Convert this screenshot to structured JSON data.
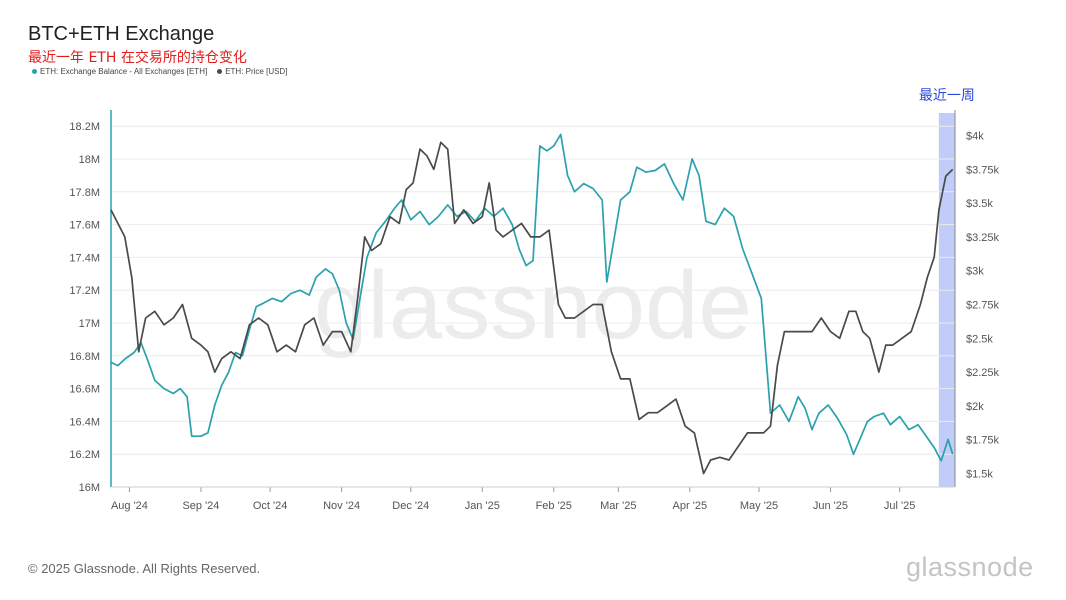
{
  "header": {
    "title": "BTC+ETH Exchange",
    "subtitle": "最近一年 ETH 在交易所的持仓变化"
  },
  "footer": {
    "copyright": "© 2025 Glassnode. All Rights Reserved.",
    "brand": "glassnode"
  },
  "colors": {
    "balance": "#2aa1ad",
    "price": "#4a4a4a",
    "highlight": "#8ea2f2",
    "annotation": "#2b49d8"
  },
  "chart_data": {
    "type": "line",
    "title": "BTC+ETH Exchange",
    "subtitle": "最近一年 ETH 在交易所的持仓变化",
    "watermark": "glassnode",
    "annotation": {
      "text": "最近一周",
      "highlight_start": "2025-07-18",
      "highlight_end": "2025-07-25"
    },
    "x_ticks": [
      "Aug '24",
      "Sep '24",
      "Oct '24",
      "Nov '24",
      "Dec '24",
      "Jan '25",
      "Feb '25",
      "Mar '25",
      "Apr '25",
      "May '25",
      "Jun '25",
      "Jul '25"
    ],
    "x_tick_dates": [
      "2024-08-01",
      "2024-09-01",
      "2024-10-01",
      "2024-11-01",
      "2024-12-01",
      "2025-01-01",
      "2025-02-01",
      "2025-03-01",
      "2025-04-01",
      "2025-05-01",
      "2025-06-01",
      "2025-07-01"
    ],
    "x_range": [
      "2024-07-24",
      "2025-07-25"
    ],
    "y_left": {
      "label": "",
      "ticks": [
        "16M",
        "16.2M",
        "16.4M",
        "16.6M",
        "16.8M",
        "17M",
        "17.2M",
        "17.4M",
        "17.6M",
        "17.8M",
        "18M",
        "18.2M"
      ],
      "range": [
        16000000,
        18250000
      ]
    },
    "y_right": {
      "label": "",
      "ticks": [
        "$1.5k",
        "$1.75k",
        "$2k",
        "$2.25k",
        "$2.5k",
        "$2.75k",
        "$3k",
        "$3.25k",
        "$3.5k",
        "$3.75k",
        "$4k"
      ],
      "range": [
        1400,
        4130
      ]
    },
    "grid": true,
    "legend": {
      "position": "top-left"
    },
    "series": [
      {
        "name": "ETH: Exchange Balance - All Exchanges [ETH]",
        "axis": "left",
        "points": [
          [
            "2024-07-24",
            16760000
          ],
          [
            "2024-07-27",
            16740000
          ],
          [
            "2024-07-30",
            16780000
          ],
          [
            "2024-08-03",
            16820000
          ],
          [
            "2024-08-06",
            16880000
          ],
          [
            "2024-08-09",
            16770000
          ],
          [
            "2024-08-12",
            16650000
          ],
          [
            "2024-08-16",
            16600000
          ],
          [
            "2024-08-20",
            16570000
          ],
          [
            "2024-08-23",
            16600000
          ],
          [
            "2024-08-26",
            16550000
          ],
          [
            "2024-08-28",
            16310000
          ],
          [
            "2024-09-01",
            16310000
          ],
          [
            "2024-09-04",
            16330000
          ],
          [
            "2024-09-07",
            16500000
          ],
          [
            "2024-09-10",
            16620000
          ],
          [
            "2024-09-13",
            16700000
          ],
          [
            "2024-09-16",
            16820000
          ],
          [
            "2024-09-19",
            16800000
          ],
          [
            "2024-09-22",
            16960000
          ],
          [
            "2024-09-25",
            17100000
          ],
          [
            "2024-09-28",
            17120000
          ],
          [
            "2024-10-02",
            17150000
          ],
          [
            "2024-10-06",
            17130000
          ],
          [
            "2024-10-10",
            17180000
          ],
          [
            "2024-10-14",
            17200000
          ],
          [
            "2024-10-18",
            17170000
          ],
          [
            "2024-10-21",
            17280000
          ],
          [
            "2024-10-25",
            17330000
          ],
          [
            "2024-10-28",
            17300000
          ],
          [
            "2024-10-31",
            17200000
          ],
          [
            "2024-11-03",
            17000000
          ],
          [
            "2024-11-06",
            16900000
          ],
          [
            "2024-11-09",
            17150000
          ],
          [
            "2024-11-12",
            17400000
          ],
          [
            "2024-11-16",
            17550000
          ],
          [
            "2024-11-20",
            17620000
          ],
          [
            "2024-11-24",
            17700000
          ],
          [
            "2024-11-27",
            17750000
          ],
          [
            "2024-12-01",
            17630000
          ],
          [
            "2024-12-05",
            17680000
          ],
          [
            "2024-12-09",
            17600000
          ],
          [
            "2024-12-13",
            17650000
          ],
          [
            "2024-12-17",
            17720000
          ],
          [
            "2024-12-21",
            17650000
          ],
          [
            "2024-12-25",
            17680000
          ],
          [
            "2024-12-29",
            17620000
          ],
          [
            "2025-01-02",
            17700000
          ],
          [
            "2025-01-06",
            17650000
          ],
          [
            "2025-01-10",
            17700000
          ],
          [
            "2025-01-14",
            17600000
          ],
          [
            "2025-01-17",
            17450000
          ],
          [
            "2025-01-20",
            17350000
          ],
          [
            "2025-01-23",
            17380000
          ],
          [
            "2025-01-26",
            18080000
          ],
          [
            "2025-01-29",
            18050000
          ],
          [
            "2025-02-01",
            18080000
          ],
          [
            "2025-02-04",
            18150000
          ],
          [
            "2025-02-07",
            17900000
          ],
          [
            "2025-02-10",
            17800000
          ],
          [
            "2025-02-14",
            17850000
          ],
          [
            "2025-02-18",
            17820000
          ],
          [
            "2025-02-22",
            17750000
          ],
          [
            "2025-02-24",
            17250000
          ],
          [
            "2025-02-27",
            17500000
          ],
          [
            "2025-03-02",
            17750000
          ],
          [
            "2025-03-06",
            17800000
          ],
          [
            "2025-03-09",
            17950000
          ],
          [
            "2025-03-13",
            17920000
          ],
          [
            "2025-03-17",
            17930000
          ],
          [
            "2025-03-21",
            17970000
          ],
          [
            "2025-03-25",
            17850000
          ],
          [
            "2025-03-29",
            17750000
          ],
          [
            "2025-04-02",
            18000000
          ],
          [
            "2025-04-05",
            17900000
          ],
          [
            "2025-04-08",
            17620000
          ],
          [
            "2025-04-12",
            17600000
          ],
          [
            "2025-04-16",
            17700000
          ],
          [
            "2025-04-20",
            17650000
          ],
          [
            "2025-04-24",
            17450000
          ],
          [
            "2025-04-28",
            17300000
          ],
          [
            "2025-05-02",
            17150000
          ],
          [
            "2025-05-06",
            16450000
          ],
          [
            "2025-05-10",
            16500000
          ],
          [
            "2025-05-14",
            16400000
          ],
          [
            "2025-05-18",
            16550000
          ],
          [
            "2025-05-21",
            16480000
          ],
          [
            "2025-05-24",
            16350000
          ],
          [
            "2025-05-27",
            16450000
          ],
          [
            "2025-05-31",
            16500000
          ],
          [
            "2025-06-04",
            16420000
          ],
          [
            "2025-06-08",
            16320000
          ],
          [
            "2025-06-11",
            16200000
          ],
          [
            "2025-06-14",
            16300000
          ],
          [
            "2025-06-17",
            16400000
          ],
          [
            "2025-06-20",
            16430000
          ],
          [
            "2025-06-24",
            16450000
          ],
          [
            "2025-06-27",
            16380000
          ],
          [
            "2025-07-01",
            16430000
          ],
          [
            "2025-07-05",
            16350000
          ],
          [
            "2025-07-09",
            16380000
          ],
          [
            "2025-07-13",
            16300000
          ],
          [
            "2025-07-16",
            16240000
          ],
          [
            "2025-07-19",
            16160000
          ],
          [
            "2025-07-22",
            16290000
          ],
          [
            "2025-07-24",
            16200000
          ]
        ]
      },
      {
        "name": "ETH: Price [USD]",
        "axis": "right",
        "points": [
          [
            "2024-07-24",
            3450
          ],
          [
            "2024-07-27",
            3350
          ],
          [
            "2024-07-30",
            3250
          ],
          [
            "2024-08-02",
            2950
          ],
          [
            "2024-08-05",
            2400
          ],
          [
            "2024-08-08",
            2650
          ],
          [
            "2024-08-12",
            2700
          ],
          [
            "2024-08-16",
            2600
          ],
          [
            "2024-08-20",
            2650
          ],
          [
            "2024-08-24",
            2750
          ],
          [
            "2024-08-28",
            2500
          ],
          [
            "2024-09-01",
            2450
          ],
          [
            "2024-09-04",
            2400
          ],
          [
            "2024-09-07",
            2250
          ],
          [
            "2024-09-10",
            2350
          ],
          [
            "2024-09-14",
            2400
          ],
          [
            "2024-09-18",
            2350
          ],
          [
            "2024-09-22",
            2600
          ],
          [
            "2024-09-26",
            2650
          ],
          [
            "2024-09-30",
            2600
          ],
          [
            "2024-10-04",
            2400
          ],
          [
            "2024-10-08",
            2450
          ],
          [
            "2024-10-12",
            2400
          ],
          [
            "2024-10-16",
            2600
          ],
          [
            "2024-10-20",
            2650
          ],
          [
            "2024-10-24",
            2450
          ],
          [
            "2024-10-28",
            2550
          ],
          [
            "2024-11-01",
            2550
          ],
          [
            "2024-11-05",
            2400
          ],
          [
            "2024-11-08",
            2800
          ],
          [
            "2024-11-11",
            3250
          ],
          [
            "2024-11-14",
            3150
          ],
          [
            "2024-11-18",
            3200
          ],
          [
            "2024-11-22",
            3400
          ],
          [
            "2024-11-26",
            3350
          ],
          [
            "2024-11-29",
            3600
          ],
          [
            "2024-12-02",
            3650
          ],
          [
            "2024-12-05",
            3900
          ],
          [
            "2024-12-08",
            3850
          ],
          [
            "2024-12-11",
            3750
          ],
          [
            "2024-12-14",
            3950
          ],
          [
            "2024-12-17",
            3900
          ],
          [
            "2024-12-20",
            3350
          ],
          [
            "2024-12-24",
            3450
          ],
          [
            "2024-12-28",
            3350
          ],
          [
            "2025-01-01",
            3400
          ],
          [
            "2025-01-04",
            3650
          ],
          [
            "2025-01-07",
            3300
          ],
          [
            "2025-01-10",
            3250
          ],
          [
            "2025-01-14",
            3300
          ],
          [
            "2025-01-18",
            3350
          ],
          [
            "2025-01-22",
            3250
          ],
          [
            "2025-01-26",
            3250
          ],
          [
            "2025-01-30",
            3300
          ],
          [
            "2025-02-03",
            2750
          ],
          [
            "2025-02-06",
            2650
          ],
          [
            "2025-02-10",
            2650
          ],
          [
            "2025-02-14",
            2700
          ],
          [
            "2025-02-18",
            2750
          ],
          [
            "2025-02-22",
            2750
          ],
          [
            "2025-02-26",
            2400
          ],
          [
            "2025-03-02",
            2200
          ],
          [
            "2025-03-06",
            2200
          ],
          [
            "2025-03-10",
            1900
          ],
          [
            "2025-03-14",
            1950
          ],
          [
            "2025-03-18",
            1950
          ],
          [
            "2025-03-22",
            2000
          ],
          [
            "2025-03-26",
            2050
          ],
          [
            "2025-03-30",
            1850
          ],
          [
            "2025-04-03",
            1800
          ],
          [
            "2025-04-07",
            1500
          ],
          [
            "2025-04-10",
            1600
          ],
          [
            "2025-04-14",
            1620
          ],
          [
            "2025-04-18",
            1600
          ],
          [
            "2025-04-22",
            1700
          ],
          [
            "2025-04-26",
            1800
          ],
          [
            "2025-04-30",
            1800
          ],
          [
            "2025-05-03",
            1800
          ],
          [
            "2025-05-06",
            1850
          ],
          [
            "2025-05-09",
            2300
          ],
          [
            "2025-05-12",
            2550
          ],
          [
            "2025-05-16",
            2550
          ],
          [
            "2025-05-20",
            2550
          ],
          [
            "2025-05-24",
            2550
          ],
          [
            "2025-05-28",
            2650
          ],
          [
            "2025-06-01",
            2550
          ],
          [
            "2025-06-05",
            2500
          ],
          [
            "2025-06-09",
            2700
          ],
          [
            "2025-06-12",
            2700
          ],
          [
            "2025-06-15",
            2550
          ],
          [
            "2025-06-18",
            2500
          ],
          [
            "2025-06-22",
            2250
          ],
          [
            "2025-06-25",
            2450
          ],
          [
            "2025-06-28",
            2450
          ],
          [
            "2025-07-02",
            2500
          ],
          [
            "2025-07-06",
            2550
          ],
          [
            "2025-07-10",
            2750
          ],
          [
            "2025-07-13",
            2950
          ],
          [
            "2025-07-16",
            3100
          ],
          [
            "2025-07-18",
            3450
          ],
          [
            "2025-07-21",
            3700
          ],
          [
            "2025-07-24",
            3750
          ]
        ]
      }
    ]
  }
}
